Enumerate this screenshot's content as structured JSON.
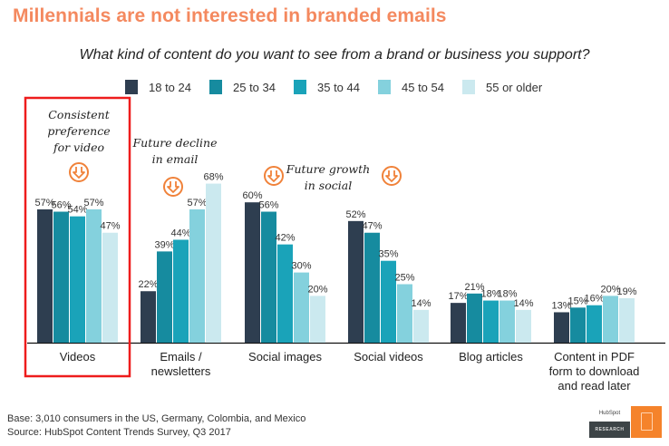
{
  "title": "Millennials are not interested in branded emails",
  "subtitle": "What kind of content do you want to see from a brand or business you support?",
  "chart_data": {
    "type": "bar",
    "title": "What kind of content do you want to see from a brand or business you support?",
    "xlabel": "",
    "ylabel": "",
    "ylim": [
      0,
      70
    ],
    "grid": false,
    "legend_position": "top",
    "categories": [
      "Videos",
      "Emails / newsletters",
      "Social images",
      "Social videos",
      "Blog articles",
      "Content in PDF form to download and read later"
    ],
    "category_lines": [
      [
        "Videos"
      ],
      [
        "Emails /",
        "newsletters"
      ],
      [
        "Social images"
      ],
      [
        "Social videos"
      ],
      [
        "Blog articles"
      ],
      [
        "Content in PDF",
        "form to download",
        "and read later"
      ]
    ],
    "series": [
      {
        "name": "18 to 24",
        "color": "#2e3e50",
        "values": [
          57,
          22,
          60,
          52,
          17,
          13
        ]
      },
      {
        "name": "25 to 34",
        "color": "#168b9f",
        "values": [
          56,
          39,
          56,
          47,
          21,
          15
        ]
      },
      {
        "name": "35 to 44",
        "color": "#1aa3b9",
        "values": [
          54,
          44,
          42,
          35,
          18,
          16
        ]
      },
      {
        "name": "45 to 54",
        "color": "#84d1dd",
        "values": [
          57,
          57,
          30,
          25,
          18,
          20
        ]
      },
      {
        "name": "55 or older",
        "color": "#cbe9ef",
        "values": [
          47,
          68,
          20,
          14,
          14,
          19
        ]
      }
    ],
    "value_suffix": "%",
    "annotations": [
      {
        "lines": [
          "Consistent",
          "preference",
          "for video"
        ],
        "category": "Videos",
        "icon": "down-arrow-circle-icon"
      },
      {
        "lines": [
          "Future decline",
          "in email"
        ],
        "category": "Emails / newsletters",
        "icon": "down-arrow-circle-icon"
      },
      {
        "lines": [
          "Future growth",
          "in social"
        ],
        "category": "Social images",
        "icon": "down-arrow-circle-icon"
      }
    ],
    "highlight_category": "Videos",
    "highlight_color": "#ee1c1c"
  },
  "colors": {
    "title": "#f4895f",
    "icon": "#f0823a",
    "highlight": "#ee1c1c"
  },
  "footer": {
    "base": "Base: 3,010 consumers in the US, Germany, Colombia, and Mexico",
    "source": "Source: HubSpot Content Trends Survey, Q3 2017"
  },
  "logo": {
    "brand": "HubSpot",
    "label": "RESEARCH"
  }
}
